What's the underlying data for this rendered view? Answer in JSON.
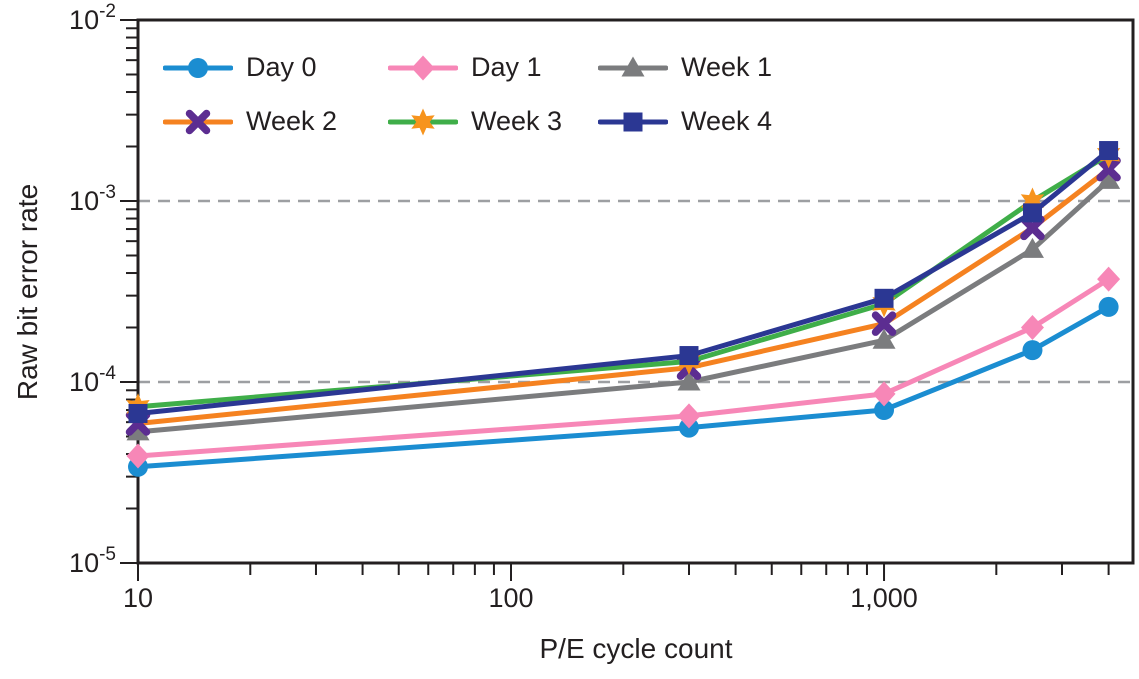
{
  "chart_data": {
    "type": "line",
    "title": "",
    "xlabel": "P/E cycle count",
    "ylabel": "Raw bit error rate",
    "x_scale": "log",
    "y_scale": "log",
    "x_range": [
      10,
      4650
    ],
    "y_range": [
      1e-05,
      0.01
    ],
    "grid": "dashed horizontal at 1e-3 and 1e-4",
    "y_gridlines": [
      0.001,
      0.0001
    ],
    "x": [
      10,
      300,
      1000,
      2500,
      4000
    ],
    "x_ticks": [
      {
        "value": 10,
        "label": "10"
      },
      {
        "value": 100,
        "label": "100"
      },
      {
        "value": 1000,
        "label": "1,000"
      }
    ],
    "y_ticks": [
      {
        "value": 0.01,
        "mantissa": "10",
        "exponent": "-2"
      },
      {
        "value": 0.001,
        "mantissa": "10",
        "exponent": "-3"
      },
      {
        "value": 0.0001,
        "mantissa": "10",
        "exponent": "-4"
      },
      {
        "value": 1e-05,
        "mantissa": "10",
        "exponent": "-5"
      }
    ],
    "legend_position": "top-left inside plot, 2 rows x 3 columns",
    "series": [
      {
        "name": "Day 0",
        "line_color": "#1b8dd1",
        "marker": "circle",
        "marker_color": "#1b8dd1",
        "values": [
          3.4e-05,
          5.6e-05,
          7e-05,
          0.00015,
          0.00026
        ]
      },
      {
        "name": "Day 1",
        "line_color": "#f787b7",
        "marker": "diamond",
        "marker_color": "#f787b7",
        "values": [
          3.9e-05,
          6.5e-05,
          8.6e-05,
          0.0002,
          0.00037
        ]
      },
      {
        "name": "Week 1",
        "line_color": "#7b7c7e",
        "marker": "triangle",
        "marker_color": "#7b7c7e",
        "values": [
          5.3e-05,
          0.0001,
          0.00017,
          0.00054,
          0.0013
        ]
      },
      {
        "name": "Week 2",
        "line_color": "#f58220",
        "marker": "x",
        "marker_color": "#5c2d91",
        "values": [
          5.9e-05,
          0.00012,
          0.00021,
          0.00071,
          0.0015
        ]
      },
      {
        "name": "Week 3",
        "line_color": "#3fae49",
        "marker": "star6",
        "marker_color": "#f7941d",
        "values": [
          7.3e-05,
          0.00013,
          0.00027,
          0.001,
          0.0018
        ]
      },
      {
        "name": "Week 4",
        "line_color": "#2b3793",
        "marker": "square",
        "marker_color": "#2b3793",
        "values": [
          6.7e-05,
          0.00014,
          0.00029,
          0.00086,
          0.0019
        ]
      }
    ],
    "colors": {
      "axis": "#231f20",
      "grid": "#9d9fa2",
      "text": "#231f20",
      "background": "#ffffff"
    }
  }
}
